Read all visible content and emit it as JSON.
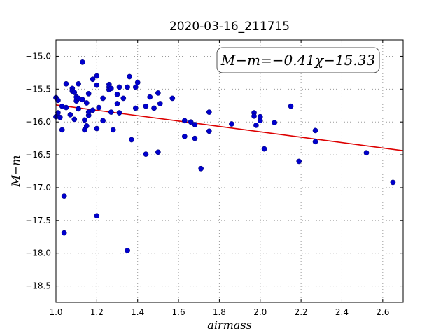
{
  "chart_data": {
    "type": "scatter",
    "title": "2020-03-16_211715",
    "xlabel": "airmass",
    "ylabel": "M−m",
    "xlim": [
      1.0,
      2.7
    ],
    "ylim": [
      -18.75,
      -14.75
    ],
    "y_inverted": true,
    "grid": true,
    "x_ticks": [
      1.0,
      1.2,
      1.4,
      1.6,
      1.8,
      2.0,
      2.2,
      2.4,
      2.6
    ],
    "x_tick_labels": [
      "1.0",
      "1.2",
      "1.4",
      "1.6",
      "1.8",
      "2.0",
      "2.2",
      "2.4",
      "2.6"
    ],
    "y_ticks": [
      -15.0,
      -15.5,
      -16.0,
      -16.5,
      -17.0,
      -17.5,
      -18.0,
      -18.5
    ],
    "y_tick_labels": [
      "−15.0",
      "−15.5",
      "−16.0",
      "−16.5",
      "−17.0",
      "−17.5",
      "−18.0",
      "−18.5"
    ],
    "fit_label": "M−m=−0.41χ−15.33",
    "fit": {
      "slope": -0.41,
      "intercept": -15.33
    },
    "colors": {
      "points": "#0000cc",
      "fit_line": "#dd0000"
    },
    "points": [
      [
        1.0,
        -15.63
      ],
      [
        1.01,
        -15.67
      ],
      [
        1.01,
        -15.86
      ],
      [
        1.0,
        -15.92
      ],
      [
        1.02,
        -15.93
      ],
      [
        1.03,
        -16.12
      ],
      [
        1.03,
        -15.76
      ],
      [
        1.04,
        -17.13
      ],
      [
        1.04,
        -17.69
      ],
      [
        1.05,
        -15.42
      ],
      [
        1.05,
        -15.78
      ],
      [
        1.07,
        -15.89
      ],
      [
        1.08,
        -15.49
      ],
      [
        1.08,
        -15.53
      ],
      [
        1.09,
        -15.55
      ],
      [
        1.09,
        -15.96
      ],
      [
        1.1,
        -15.62
      ],
      [
        1.1,
        -15.68
      ],
      [
        1.11,
        -15.64
      ],
      [
        1.11,
        -15.8
      ],
      [
        1.11,
        -15.42
      ],
      [
        1.13,
        -15.09
      ],
      [
        1.13,
        -15.66
      ],
      [
        1.14,
        -16.12
      ],
      [
        1.14,
        -15.97
      ],
      [
        1.15,
        -15.71
      ],
      [
        1.15,
        -16.06
      ],
      [
        1.16,
        -15.57
      ],
      [
        1.16,
        -15.9
      ],
      [
        1.16,
        -15.85
      ],
      [
        1.18,
        -15.35
      ],
      [
        1.18,
        -15.82
      ],
      [
        1.2,
        -15.3
      ],
      [
        1.2,
        -15.44
      ],
      [
        1.2,
        -16.1
      ],
      [
        1.21,
        -15.78
      ],
      [
        1.2,
        -17.43
      ],
      [
        1.23,
        -15.64
      ],
      [
        1.23,
        -15.98
      ],
      [
        1.26,
        -15.43
      ],
      [
        1.26,
        -15.47
      ],
      [
        1.26,
        -15.51
      ],
      [
        1.27,
        -15.85
      ],
      [
        1.27,
        -15.49
      ],
      [
        1.28,
        -16.12
      ],
      [
        1.3,
        -15.58
      ],
      [
        1.3,
        -15.72
      ],
      [
        1.31,
        -15.86
      ],
      [
        1.31,
        -15.47
      ],
      [
        1.33,
        -15.64
      ],
      [
        1.35,
        -15.47
      ],
      [
        1.35,
        -17.96
      ],
      [
        1.36,
        -15.31
      ],
      [
        1.37,
        -16.27
      ],
      [
        1.39,
        -15.79
      ],
      [
        1.39,
        -15.47
      ],
      [
        1.4,
        -15.4
      ],
      [
        1.44,
        -15.76
      ],
      [
        1.44,
        -16.49
      ],
      [
        1.46,
        -15.62
      ],
      [
        1.48,
        -15.79
      ],
      [
        1.5,
        -15.56
      ],
      [
        1.5,
        -16.46
      ],
      [
        1.51,
        -15.72
      ],
      [
        1.57,
        -15.64
      ],
      [
        1.63,
        -15.98
      ],
      [
        1.63,
        -16.22
      ],
      [
        1.66,
        -16.0
      ],
      [
        1.68,
        -16.25
      ],
      [
        1.68,
        -16.04
      ],
      [
        1.71,
        -16.71
      ],
      [
        1.75,
        -15.85
      ],
      [
        1.75,
        -16.14
      ],
      [
        1.86,
        -16.03
      ],
      [
        1.97,
        -15.86
      ],
      [
        1.97,
        -15.91
      ],
      [
        1.98,
        -16.05
      ],
      [
        2.0,
        -15.92
      ],
      [
        2.0,
        -15.98
      ],
      [
        2.02,
        -16.41
      ],
      [
        2.07,
        -16.01
      ],
      [
        2.15,
        -15.76
      ],
      [
        2.19,
        -16.6
      ],
      [
        2.27,
        -16.13
      ],
      [
        2.27,
        -16.3
      ],
      [
        2.52,
        -16.47
      ],
      [
        2.65,
        -16.92
      ]
    ]
  }
}
